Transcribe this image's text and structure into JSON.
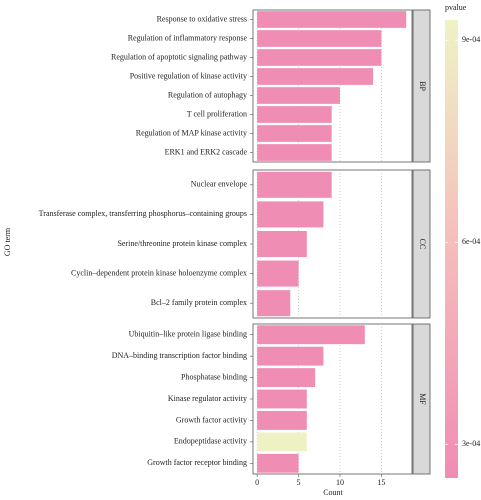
{
  "chart_data": {
    "type": "faceted-bar",
    "x_label": "Count",
    "y_label": "GO term",
    "legend_title": "pvalue",
    "xlim": [
      -0.5,
      18.7
    ],
    "xticks": [
      0,
      5,
      10,
      15
    ],
    "grid": true,
    "clim": [
      0.00025,
      0.00093
    ],
    "cticks": [
      {
        "value": 0.0003,
        "label": "3e-04"
      },
      {
        "value": 0.0006,
        "label": "6e-04"
      },
      {
        "value": 0.0009,
        "label": "9e-04"
      }
    ],
    "colors": [
      "#f08cb4",
      "#f5bcbc",
      "#eef3c4"
    ],
    "panels": [
      {
        "name": "BP",
        "categories": [
          "Response to oxidative stress",
          "Regulation of inflammatory response",
          "Regulation of apoptotic signaling pathway",
          "Positive regulation of kinase activity",
          "Regulation of autophagy",
          "T cell proliferation",
          "Regulation of MAP kinase activity",
          "ERK1 and ERK2 cascade"
        ],
        "values": [
          18,
          15,
          15,
          14,
          10,
          9,
          9,
          9
        ],
        "pvalues": [
          0.00026,
          0.00026,
          0.00026,
          0.00026,
          0.00026,
          0.00026,
          0.00026,
          0.00026
        ]
      },
      {
        "name": "CC",
        "categories": [
          "Nuclear envelope",
          "Transferase complex, transferring phosphorus–containing groups",
          "Serine/threonine protein kinase complex",
          "Cyclin–dependent protein kinase holoenzyme complex",
          "Bcl–2 family protein complex"
        ],
        "values": [
          9,
          8,
          6,
          5,
          4
        ],
        "pvalues": [
          0.00026,
          0.00026,
          0.00026,
          0.00026,
          0.00026
        ]
      },
      {
        "name": "MF",
        "categories": [
          "Ubiquitin–like protein ligase binding",
          "DNA–binding transcription factor binding",
          "Phosphatase binding",
          "Kinase regulator activity",
          "Growth factor activity",
          "Endopeptidase activity",
          "Growth factor receptor binding"
        ],
        "values": [
          13,
          8,
          7,
          6,
          6,
          6,
          5
        ],
        "pvalues": [
          0.00026,
          0.00026,
          0.00026,
          0.00026,
          0.00026,
          0.00092,
          0.00026
        ]
      }
    ]
  }
}
